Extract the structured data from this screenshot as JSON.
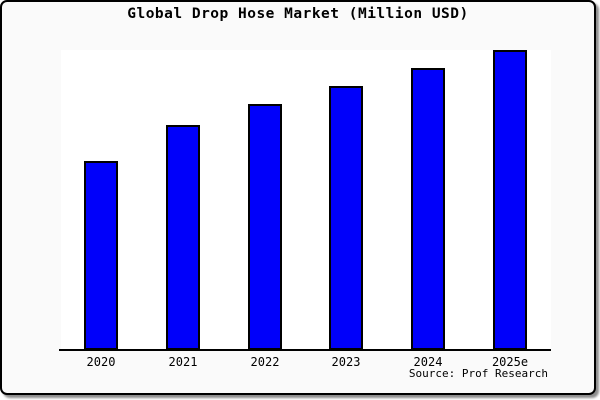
{
  "title": "Global Drop Hose Market (Million USD)",
  "source": "Source: Prof Research",
  "chart_data": {
    "type": "bar",
    "title": "Global Drop Hose Market (Million USD)",
    "categories": [
      "2020",
      "2021",
      "2022",
      "2023",
      "2024",
      "2025e"
    ],
    "values": [
      63,
      75,
      82,
      88,
      94,
      100
    ],
    "xlabel": "",
    "ylabel": "",
    "ylim": [
      0,
      100
    ],
    "y_axis_ticks_visible": false,
    "grid": false,
    "legend": false,
    "source_caption": "Source: Prof Research"
  },
  "colors": {
    "figure_background": "#fafafa",
    "plot_background": "#ffffff",
    "bar_fill": "#0000fa",
    "bar_border": "#000000",
    "axis_line": "#000000",
    "frame_border": "#000000",
    "text": "#000000"
  }
}
